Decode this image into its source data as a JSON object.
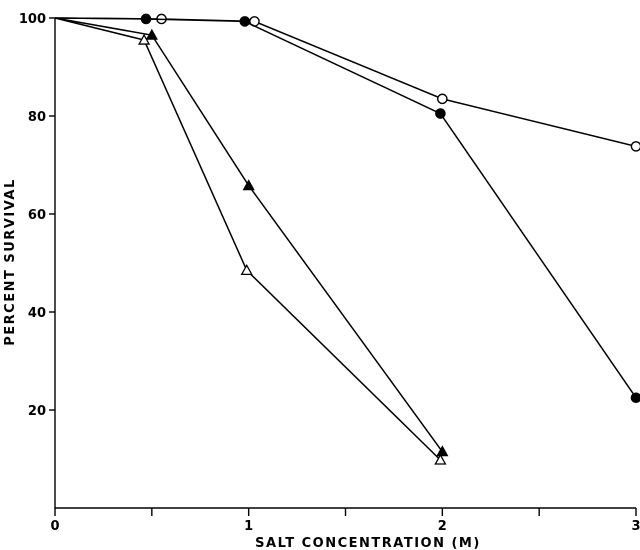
{
  "chart_data": {
    "type": "line",
    "title": "",
    "xlabel": "SALT CONCENTRATION (M)",
    "ylabel": "PERCENT SURVIVAL",
    "xlim": [
      0,
      3
    ],
    "ylim": [
      0,
      100
    ],
    "x_ticks": [
      0,
      0.5,
      1,
      1.5,
      2,
      2.5,
      3
    ],
    "x_tick_labels": [
      "0",
      "",
      "1",
      "",
      "2",
      "",
      "3"
    ],
    "y_ticks": [
      20,
      40,
      60,
      80,
      100
    ],
    "y_tick_labels": [
      "20",
      "40",
      "60",
      "80",
      "100"
    ],
    "grid": false,
    "legend": "none",
    "series": [
      {
        "marker": "open-circle",
        "x": [
          0,
          0.55,
          1.03,
          2.0,
          3.0
        ],
        "y": [
          100,
          99.8,
          99.3,
          83.5,
          73.8
        ]
      },
      {
        "marker": "filled-circle",
        "x": [
          0,
          0.47,
          0.98,
          1.99,
          3.0
        ],
        "y": [
          100,
          99.8,
          99.3,
          80.5,
          22.5
        ]
      },
      {
        "marker": "filled-triangle",
        "x": [
          0,
          0.5,
          1.0,
          2.0
        ],
        "y": [
          100,
          96.5,
          65.8,
          11.5
        ]
      },
      {
        "marker": "open-triangle",
        "x": [
          0,
          0.46,
          0.99,
          1.99
        ],
        "y": [
          100,
          95.5,
          48.5,
          9.8
        ]
      }
    ]
  }
}
